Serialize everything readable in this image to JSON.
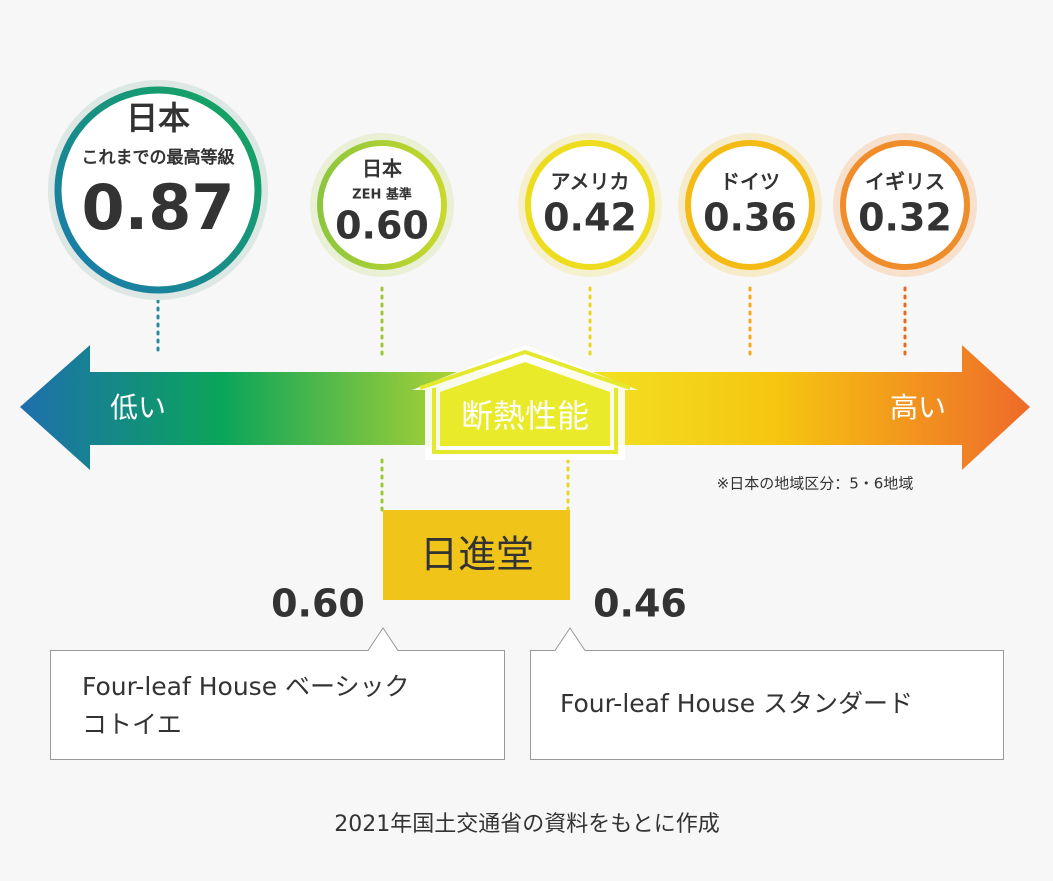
{
  "circles": [
    {
      "label": "日本",
      "sublabel": "これまでの最高等級",
      "value": "0.87"
    },
    {
      "label": "日本",
      "sublabel": "ZEH 基準",
      "value": "0.60"
    },
    {
      "label": "アメリカ",
      "value": "0.42"
    },
    {
      "label": "ドイツ",
      "value": "0.36"
    },
    {
      "label": "イギリス",
      "value": "0.32"
    }
  ],
  "arrow": {
    "low": "低い",
    "center": "断熱性能",
    "high": "高い"
  },
  "note": "※日本の地域区分：5・6地域",
  "company": "日進堂",
  "products": [
    {
      "value": "0.60",
      "lines": [
        "Four-leaf House ベーシック",
        "コトイエ"
      ]
    },
    {
      "value": "0.46",
      "lines": [
        "Four-leaf House スタンダード"
      ]
    }
  ],
  "source": "2021年国土交通省の資料をもとに作成"
}
